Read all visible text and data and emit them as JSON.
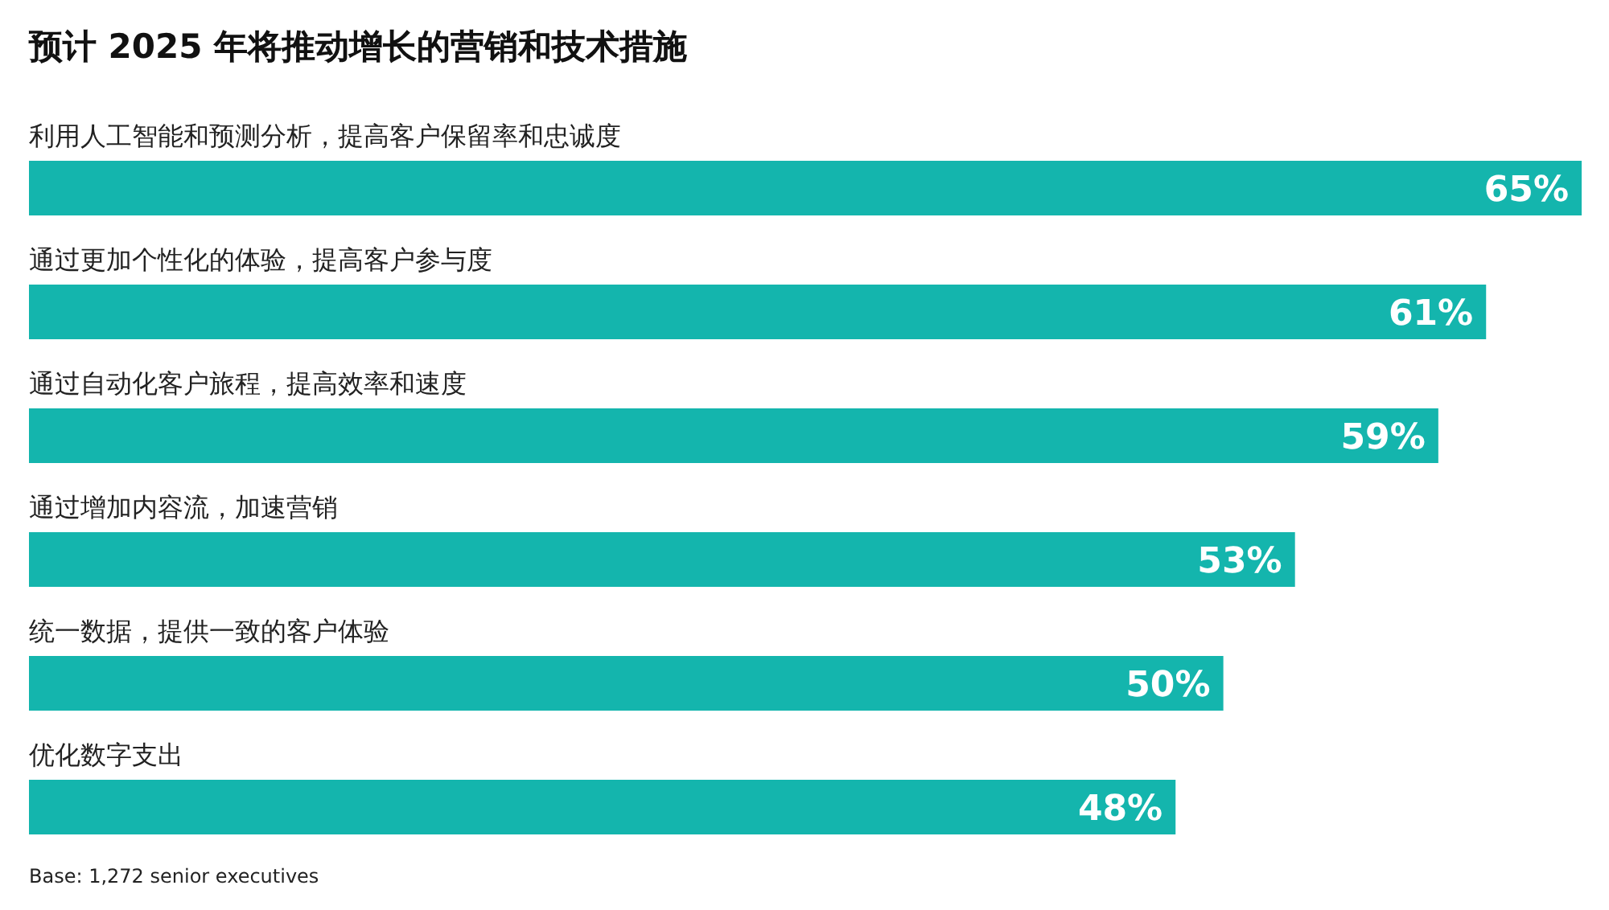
{
  "chart_data": {
    "type": "bar",
    "orientation": "horizontal",
    "title": "预计 2025 年将推动增长的营销和技术措施",
    "categories": [
      "利用人工智能和预测分析，提高客户保留率和忠诚度",
      "通过更加个性化的体验，提高客户参与度",
      "通过自动化客户旅程，提高效率和速度",
      "通过增加内容流，加速营销",
      "统一数据，提供一致的客户体验",
      "优化数字支出"
    ],
    "values": [
      65,
      61,
      59,
      53,
      50,
      48
    ],
    "value_labels": [
      "65%",
      "61%",
      "59%",
      "53%",
      "50%",
      "48%"
    ],
    "color": "#14b5ad",
    "annotations": [
      "Base: 1,272 senior executives"
    ]
  }
}
